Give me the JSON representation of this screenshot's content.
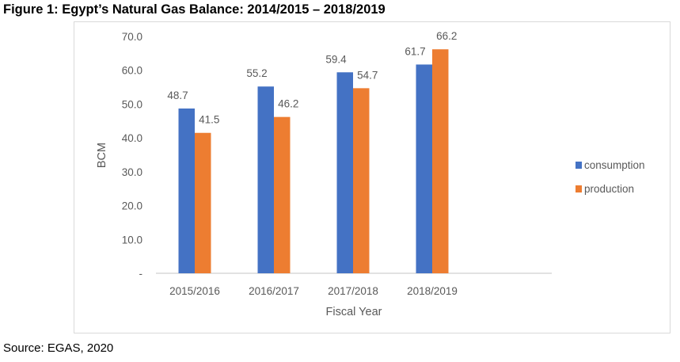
{
  "title": "Figure 1: Egypt’s Natural Gas Balance: 2014/2015 – 2018/2019",
  "source": "Source: EGAS, 2020",
  "chart_data": {
    "type": "bar",
    "categories": [
      "2015/2016",
      "2016/2017",
      "2017/2018",
      "2018/2019"
    ],
    "series": [
      {
        "name": "consumption",
        "values": [
          48.7,
          55.2,
          59.4,
          61.7
        ],
        "color": "#4472c4"
      },
      {
        "name": "production",
        "values": [
          41.5,
          46.2,
          54.7,
          66.2
        ],
        "color": "#ed7d31"
      }
    ],
    "data_labels": [
      [
        "48.7",
        "55.2",
        "59.4",
        "61.7"
      ],
      [
        "41.5",
        "46.2",
        "54.7",
        "66.2"
      ]
    ],
    "xlabel": "Fiscal Year",
    "ylabel": "BCM",
    "ylim": [
      0,
      70
    ],
    "yticks": [
      "-",
      "10.0",
      "20.0",
      "30.0",
      "40.0",
      "50.0",
      "60.0",
      "70.0"
    ],
    "grid": false,
    "legend": "right"
  }
}
